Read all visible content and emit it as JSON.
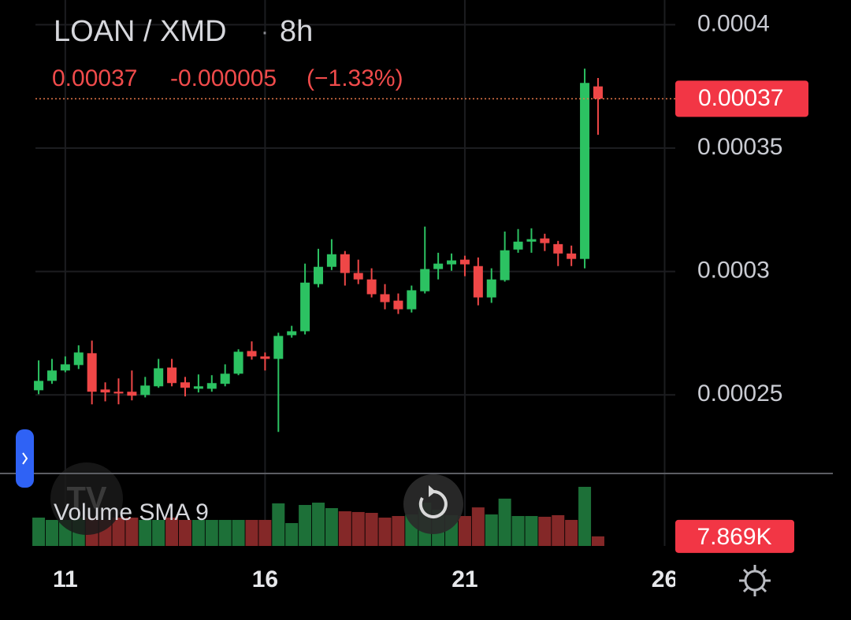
{
  "chart_data": {
    "type": "candlestick",
    "title": "LOAN / XMD",
    "interval": "8h",
    "last_price": 0.00037,
    "change": -5e-06,
    "change_percent": {
      "value": -1.33,
      "label": "(−1.33%)"
    },
    "up_color": "#2cc262",
    "down_color": "#ef4747",
    "x": [
      0,
      1,
      2,
      3,
      4,
      5,
      6,
      7,
      8,
      9,
      10,
      11,
      12,
      13,
      14,
      15,
      16,
      17,
      18,
      19,
      20,
      21,
      22,
      23,
      24,
      25,
      26,
      27,
      28,
      29,
      30,
      31,
      32,
      33,
      34,
      35,
      36,
      37,
      38,
      39,
      40,
      41,
      42
    ],
    "open": [
      0.0002519,
      0.0002557,
      0.0002599,
      0.0002621,
      0.0002669,
      0.0002522,
      0.0002513,
      0.0002513,
      0.00025,
      0.0002535,
      0.0002611,
      0.0002551,
      0.0002525,
      0.0002525,
      0.0002545,
      0.0002586,
      0.0002678,
      0.0002656,
      0.0002646,
      0.0002742,
      0.0002758,
      0.0002949,
      0.0003019,
      0.000307,
      0.0002994,
      0.0002968,
      0.0002908,
      0.0002882,
      0.0002847,
      0.000292,
      0.000301,
      0.0003029,
      0.0003048,
      0.0003022,
      0.0002895,
      0.0002965,
      0.0003089,
      0.0003121,
      0.0003134,
      0.0003111,
      0.0003073,
      0.0003051,
      0.000375
    ],
    "high": [
      0.000264,
      0.0002646,
      0.0002656,
      0.0002701,
      0.000272,
      0.0002551,
      0.0002567,
      0.0002599,
      0.0002573,
      0.0002646,
      0.0002646,
      0.0002573,
      0.0002583,
      0.000258,
      0.0002624,
      0.0002685,
      0.0002717,
      0.0002672,
      0.0002752,
      0.000278,
      0.0003032,
      0.0003092,
      0.0003131,
      0.0003083,
      0.0003048,
      0.0003013,
      0.0002949,
      0.0002911,
      0.0002943,
      0.0003182,
      0.0003076,
      0.0003073,
      0.0003064,
      0.0003057,
      0.0003013,
      0.0003162,
      0.0003172,
      0.0003175,
      0.0003153,
      0.0003124,
      0.0003105,
      0.0003822,
      0.0003784
    ],
    "low": [
      0.0002503,
      0.0002545,
      0.0002592,
      0.0002605,
      0.0002462,
      0.0002474,
      0.0002462,
      0.0002478,
      0.000249,
      0.0002529,
      0.0002535,
      0.0002494,
      0.000251,
      0.0002513,
      0.0002535,
      0.000258,
      0.0002643,
      0.0002599,
      0.000235,
      0.0002732,
      0.0002745,
      0.0002936,
      0.0003006,
      0.0002943,
      0.0002949,
      0.0002895,
      0.0002847,
      0.0002828,
      0.0002834,
      0.0002911,
      0.0002968,
      0.0003003,
      0.0002981,
      0.0002863,
      0.0002873,
      0.0002959,
      0.0003076,
      0.0003076,
      0.0003083,
      0.0003022,
      0.0003022,
      0.0003013,
      0.0003554
    ],
    "close": [
      0.0002557,
      0.0002599,
      0.0002624,
      0.0002672,
      0.0002513,
      0.000251,
      0.0002506,
      0.0002497,
      0.0002538,
      0.0002608,
      0.0002548,
      0.0002529,
      0.0002535,
      0.0002548,
      0.0002586,
      0.0002675,
      0.0002656,
      0.0002646,
      0.0002739,
      0.0002758,
      0.0002955,
      0.0003019,
      0.000307,
      0.0002994,
      0.0002968,
      0.0002908,
      0.0002876,
      0.0002847,
      0.0002924,
      0.000301,
      0.0003032,
      0.0003045,
      0.0003029,
      0.0002895,
      0.0002968,
      0.0003086,
      0.0003121,
      0.0003131,
      0.0003115,
      0.0003073,
      0.0003051,
      0.0003764,
      0.00037
    ],
    "xlim": [
      -0.24,
      47.8
    ],
    "xticks": [
      {
        "value": 2,
        "label": "11"
      },
      {
        "value": 17,
        "label": "16"
      },
      {
        "value": 32,
        "label": "21"
      },
      {
        "value": 47,
        "label": "26"
      }
    ],
    "ylim": [
      0.0002185,
      0.00041
    ],
    "yticks": [
      0.00025,
      0.0003,
      0.00035,
      0.0004
    ],
    "grid": true,
    "volume": {
      "name": "Volume SMA 9",
      "up_color": "#1d7038",
      "down_color": "#842828",
      "values": [
        23300,
        21400,
        21400,
        23300,
        23300,
        21400,
        23300,
        23300,
        21400,
        21400,
        23300,
        21400,
        21400,
        21400,
        21400,
        21400,
        21400,
        21400,
        35000,
        18800,
        33700,
        35600,
        31100,
        28500,
        27900,
        27200,
        23300,
        24600,
        25900,
        35600,
        29800,
        25300,
        24600,
        31700,
        25900,
        38900,
        24600,
        24600,
        24000,
        25300,
        21400,
        48600,
        7869
      ],
      "value_labels": [
        null,
        null,
        null,
        null,
        null,
        null,
        null,
        null,
        null,
        null,
        null,
        null,
        null,
        null,
        null,
        null,
        null,
        null,
        null,
        null,
        null,
        null,
        null,
        null,
        null,
        null,
        null,
        null,
        null,
        null,
        null,
        null,
        null,
        null,
        null,
        null,
        null,
        null,
        null,
        null,
        null,
        null,
        "7.869K"
      ],
      "ylim": [
        0,
        57000
      ]
    }
  }
}
